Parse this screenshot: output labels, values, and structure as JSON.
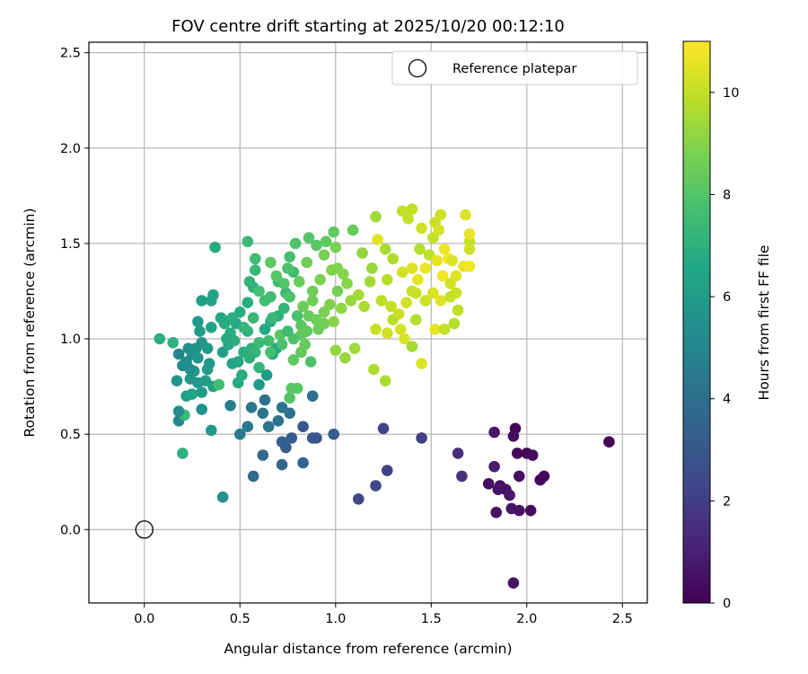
{
  "chart_data": {
    "type": "scatter",
    "title": "FOV centre drift starting at 2025/10/20 00:12:10",
    "xlabel": "Angular distance from reference (arcmin)",
    "ylabel": "Rotation from reference (arcmin)",
    "xlim": [
      -0.29,
      2.63
    ],
    "ylim": [
      -0.385,
      2.555
    ],
    "x_ticks": [
      "0.0",
      "0.5",
      "1.0",
      "1.5",
      "2.0",
      "2.5"
    ],
    "x_tick_values": [
      0,
      0.5,
      1.0,
      1.5,
      2.0,
      2.5
    ],
    "y_ticks": [
      "0.0",
      "0.5",
      "1.0",
      "1.5",
      "2.0",
      "2.5"
    ],
    "y_tick_values": [
      0,
      0.5,
      1.0,
      1.5,
      2.0,
      2.5
    ],
    "grid": true,
    "legend": {
      "placement": "top-right",
      "entries": [
        "Reference platepar"
      ]
    },
    "reference_point": {
      "x": 0.0,
      "y": 0.0,
      "marker": "open-circle"
    },
    "colorbar": {
      "label": "Hours from first FF file",
      "colormap": "viridis",
      "range": [
        0,
        11
      ],
      "ticks": [
        "0",
        "2",
        "4",
        "6",
        "8",
        "10"
      ],
      "tick_values": [
        0,
        2,
        4,
        6,
        8,
        10
      ]
    },
    "points": [
      [
        2.43,
        0.46,
        0.1
      ],
      [
        1.94,
        0.53,
        0.1
      ],
      [
        1.95,
        0.4,
        0.2
      ],
      [
        2.0,
        0.4,
        0.2
      ],
      [
        2.03,
        0.39,
        0.3
      ],
      [
        1.93,
        0.49,
        0.4
      ],
      [
        2.09,
        0.28,
        0.3
      ],
      [
        2.07,
        0.26,
        0.2
      ],
      [
        1.96,
        0.28,
        0.4
      ],
      [
        1.8,
        0.24,
        0.4
      ],
      [
        1.86,
        0.23,
        0.5
      ],
      [
        1.85,
        0.21,
        0.6
      ],
      [
        1.89,
        0.21,
        0.5
      ],
      [
        1.91,
        0.18,
        0.7
      ],
      [
        1.92,
        0.11,
        0.6
      ],
      [
        1.96,
        0.1,
        0.5
      ],
      [
        2.02,
        0.1,
        0.3
      ],
      [
        1.84,
        0.09,
        0.4
      ],
      [
        1.93,
        -0.28,
        0.6
      ],
      [
        1.83,
        0.51,
        0.7
      ],
      [
        1.83,
        0.33,
        0.9
      ],
      [
        1.64,
        0.4,
        1.4
      ],
      [
        1.66,
        0.28,
        1.5
      ],
      [
        1.45,
        0.48,
        2.0
      ],
      [
        1.25,
        0.53,
        2.2
      ],
      [
        1.27,
        0.31,
        2.1
      ],
      [
        1.21,
        0.23,
        2.4
      ],
      [
        1.12,
        0.16,
        2.3
      ],
      [
        0.83,
        0.54,
        3.0
      ],
      [
        0.99,
        0.5,
        3.3
      ],
      [
        0.88,
        0.48,
        3.1
      ],
      [
        0.9,
        0.48,
        3.0
      ],
      [
        0.77,
        0.48,
        3.2
      ],
      [
        0.72,
        0.46,
        3.4
      ],
      [
        0.74,
        0.43,
        3.2
      ],
      [
        0.83,
        0.35,
        3.5
      ],
      [
        0.72,
        0.34,
        3.6
      ],
      [
        0.57,
        0.28,
        3.8
      ],
      [
        0.62,
        0.39,
        3.7
      ],
      [
        0.76,
        0.61,
        4.0
      ],
      [
        0.62,
        0.61,
        4.3
      ],
      [
        0.63,
        0.68,
        4.1
      ],
      [
        0.56,
        0.64,
        4.4
      ],
      [
        0.72,
        0.64,
        4.2
      ],
      [
        0.5,
        0.5,
        4.6
      ],
      [
        0.54,
        0.54,
        4.5
      ],
      [
        0.65,
        0.54,
        4.3
      ],
      [
        0.88,
        0.7,
        4.0
      ],
      [
        0.7,
        0.57,
        4.2
      ],
      [
        0.45,
        0.65,
        4.7
      ],
      [
        0.41,
        0.17,
        5.6
      ],
      [
        0.2,
        0.4,
        7.0
      ],
      [
        0.18,
        0.57,
        5.0
      ],
      [
        0.21,
        0.6,
        7.3
      ],
      [
        0.18,
        0.62,
        5.3
      ],
      [
        0.3,
        0.63,
        5.5
      ],
      [
        0.22,
        0.7,
        6.2
      ],
      [
        0.25,
        0.71,
        6.4
      ],
      [
        0.17,
        0.78,
        5.6
      ],
      [
        0.24,
        0.79,
        5.8
      ],
      [
        0.2,
        0.86,
        5.2
      ],
      [
        0.22,
        0.88,
        5.5
      ],
      [
        0.18,
        0.92,
        5.0
      ],
      [
        0.25,
        0.92,
        5.3
      ],
      [
        0.27,
        0.95,
        5.5
      ],
      [
        0.3,
        0.98,
        5.7
      ],
      [
        0.33,
        0.95,
        5.9
      ],
      [
        0.29,
        1.04,
        6.1
      ],
      [
        0.35,
        1.06,
        6.3
      ],
      [
        0.28,
        1.09,
        6.0
      ],
      [
        0.35,
        1.2,
        6.3
      ],
      [
        0.3,
        1.2,
        6.2
      ],
      [
        0.36,
        1.23,
        6.3
      ],
      [
        0.37,
        1.48,
        6.7
      ],
      [
        0.08,
        1.0,
        6.9
      ],
      [
        0.15,
        0.98,
        7.0
      ],
      [
        0.35,
        0.52,
        5.9
      ],
      [
        0.36,
        0.75,
        6.2
      ],
      [
        0.39,
        0.76,
        7.6
      ],
      [
        0.34,
        0.87,
        6.0
      ],
      [
        0.41,
        0.93,
        6.2
      ],
      [
        0.41,
        1.1,
        6.2
      ],
      [
        0.46,
        0.87,
        6.4
      ],
      [
        0.49,
        0.88,
        6.5
      ],
      [
        0.44,
        0.97,
        6.6
      ],
      [
        0.48,
        1.08,
        6.5
      ],
      [
        0.5,
        1.14,
        6.7
      ],
      [
        0.54,
        1.19,
        6.9
      ],
      [
        0.57,
        1.27,
        7.0
      ],
      [
        0.55,
        1.3,
        7.2
      ],
      [
        0.58,
        1.36,
        7.3
      ],
      [
        0.54,
        1.51,
        7.4
      ],
      [
        0.58,
        1.42,
        7.5
      ],
      [
        0.49,
        0.77,
        6.7
      ],
      [
        0.51,
        0.81,
        6.8
      ],
      [
        0.52,
        0.93,
        6.9
      ],
      [
        0.56,
        0.95,
        7.0
      ],
      [
        0.6,
        0.85,
        7.2
      ],
      [
        0.6,
        0.76,
        5.9
      ],
      [
        0.64,
        0.81,
        6.0
      ],
      [
        0.67,
        0.92,
        6.2
      ],
      [
        0.69,
        0.95,
        6.4
      ],
      [
        0.63,
        1.05,
        6.6
      ],
      [
        0.66,
        1.09,
        6.8
      ],
      [
        0.7,
        1.12,
        7.0
      ],
      [
        0.73,
        1.16,
        7.2
      ],
      [
        0.74,
        1.24,
        7.4
      ],
      [
        0.7,
        1.3,
        7.5
      ],
      [
        0.78,
        1.35,
        7.6
      ],
      [
        0.76,
        1.43,
        7.7
      ],
      [
        0.75,
        1.37,
        7.8
      ],
      [
        0.79,
        1.5,
        7.9
      ],
      [
        0.86,
        1.53,
        8.0
      ],
      [
        0.9,
        1.49,
        8.1
      ],
      [
        0.95,
        1.51,
        8.2
      ],
      [
        0.99,
        1.56,
        8.3
      ],
      [
        1.09,
        1.57,
        8.4
      ],
      [
        0.81,
        1.3,
        8.4
      ],
      [
        0.88,
        1.25,
        8.5
      ],
      [
        0.85,
        1.4,
        8.6
      ],
      [
        0.94,
        1.44,
        8.7
      ],
      [
        0.92,
        1.31,
        8.8
      ],
      [
        0.98,
        1.36,
        8.9
      ],
      [
        1.01,
        1.37,
        8.9
      ],
      [
        1.0,
        1.48,
        8.8
      ],
      [
        1.04,
        1.34,
        9.0
      ],
      [
        1.06,
        1.29,
        9.0
      ],
      [
        0.76,
        0.69,
        8.0
      ],
      [
        0.77,
        0.74,
        8.1
      ],
      [
        0.8,
        0.74,
        8.1
      ],
      [
        0.78,
        0.89,
        8.2
      ],
      [
        0.82,
        0.93,
        8.3
      ],
      [
        0.84,
        0.97,
        8.4
      ],
      [
        0.87,
        0.88,
        7.9
      ],
      [
        0.86,
        1.12,
        8.4
      ],
      [
        0.9,
        1.1,
        8.6
      ],
      [
        0.94,
        1.14,
        8.8
      ],
      [
        0.97,
        1.18,
        8.9
      ],
      [
        0.99,
        1.09,
        9.0
      ],
      [
        1.03,
        1.16,
        9.1
      ],
      [
        1.01,
        1.25,
        8.7
      ],
      [
        1.0,
        0.94,
        9.2
      ],
      [
        1.05,
        0.9,
        9.3
      ],
      [
        1.1,
        0.95,
        9.4
      ],
      [
        1.12,
        1.23,
        9.5
      ],
      [
        1.08,
        1.2,
        9.3
      ],
      [
        1.15,
        1.17,
        9.6
      ],
      [
        1.18,
        1.3,
        9.5
      ],
      [
        1.14,
        1.45,
        9.2
      ],
      [
        1.19,
        1.37,
        9.3
      ],
      [
        1.21,
        1.64,
        9.4
      ],
      [
        1.22,
        1.52,
        10.5
      ],
      [
        1.26,
        1.47,
        9.6
      ],
      [
        1.3,
        1.42,
        9.7
      ],
      [
        1.27,
        1.31,
        9.8
      ],
      [
        1.24,
        1.2,
        9.9
      ],
      [
        1.29,
        1.17,
        10.0
      ],
      [
        1.3,
        1.1,
        9.8
      ],
      [
        1.21,
        1.05,
        10.1
      ],
      [
        1.27,
        1.03,
        10.2
      ],
      [
        1.34,
        1.05,
        10.3
      ],
      [
        1.36,
        1.0,
        10.4
      ],
      [
        1.33,
        1.13,
        10.1
      ],
      [
        1.37,
        1.19,
        10.2
      ],
      [
        1.4,
        1.25,
        10.0
      ],
      [
        1.35,
        1.35,
        10.3
      ],
      [
        1.4,
        1.37,
        10.5
      ],
      [
        1.43,
        1.31,
        10.6
      ],
      [
        1.47,
        1.37,
        10.7
      ],
      [
        1.44,
        1.47,
        9.8
      ],
      [
        1.49,
        1.44,
        9.9
      ],
      [
        1.51,
        1.53,
        10.0
      ],
      [
        1.52,
        1.61,
        10.1
      ],
      [
        1.55,
        1.65,
        10.2
      ],
      [
        1.53,
        1.41,
        10.6
      ],
      [
        1.56,
        1.33,
        10.8
      ],
      [
        1.57,
        1.47,
        10.7
      ],
      [
        1.59,
        1.42,
        10.9
      ],
      [
        1.51,
        1.24,
        10.4
      ],
      [
        1.55,
        1.2,
        10.5
      ],
      [
        1.52,
        1.05,
        10.6
      ],
      [
        1.45,
        0.87,
        10.4
      ],
      [
        1.4,
        0.96,
        9.5
      ],
      [
        1.26,
        0.78,
        9.6
      ],
      [
        1.2,
        0.84,
        9.7
      ],
      [
        1.42,
        1.1,
        9.8
      ],
      [
        1.4,
        1.68,
        9.9
      ],
      [
        1.38,
        1.63,
        10.0
      ],
      [
        1.35,
        1.67,
        10.0
      ],
      [
        1.45,
        1.58,
        10.2
      ],
      [
        1.54,
        1.57,
        10.3
      ],
      [
        1.61,
        1.41,
        10.4
      ],
      [
        1.63,
        1.33,
        10.5
      ],
      [
        1.6,
        1.29,
        10.3
      ],
      [
        1.63,
        1.24,
        10.1
      ],
      [
        1.6,
        1.22,
        10.0
      ],
      [
        1.64,
        1.15,
        9.9
      ],
      [
        1.62,
        1.08,
        9.8
      ],
      [
        1.57,
        1.05,
        10.0
      ],
      [
        1.67,
        1.38,
        10.6
      ],
      [
        1.7,
        1.51,
        10.0
      ],
      [
        1.7,
        1.47,
        10.2
      ],
      [
        1.68,
        1.65,
        10.4
      ],
      [
        1.7,
        1.55,
        10.6
      ],
      [
        1.7,
        1.38,
        10.8
      ],
      [
        1.42,
        1.24,
        10.1
      ],
      [
        1.47,
        1.2,
        10.2
      ],
      [
        0.82,
        1.02,
        8.3
      ],
      [
        0.71,
        1.02,
        8.1
      ],
      [
        0.65,
        0.99,
        7.6
      ],
      [
        0.6,
        0.98,
        7.4
      ],
      [
        0.58,
        0.93,
        7.2
      ],
      [
        0.55,
        0.9,
        7.0
      ],
      [
        0.66,
        0.93,
        7.7
      ],
      [
        0.72,
        0.97,
        7.8
      ],
      [
        0.78,
        1.0,
        7.9
      ],
      [
        0.66,
        1.22,
        7.5
      ],
      [
        0.63,
        1.2,
        7.6
      ],
      [
        0.6,
        1.25,
        7.7
      ],
      [
        0.57,
        1.11,
        7.3
      ],
      [
        0.54,
        1.04,
        7.1
      ],
      [
        0.52,
        1.06,
        7.2
      ],
      [
        0.47,
        0.99,
        7.0
      ],
      [
        0.45,
        1.03,
        6.9
      ],
      [
        0.42,
        1.08,
        6.8
      ],
      [
        0.4,
        1.11,
        6.6
      ],
      [
        0.43,
        1.0,
        6.7
      ],
      [
        0.46,
        1.11,
        6.9
      ],
      [
        0.67,
        1.11,
        7.3
      ],
      [
        0.75,
        1.04,
        7.5
      ],
      [
        0.8,
        1.12,
        7.8
      ],
      [
        0.76,
        1.22,
        7.9
      ],
      [
        0.73,
        1.29,
        8.0
      ],
      [
        0.69,
        1.33,
        8.1
      ],
      [
        0.66,
        1.4,
        8.2
      ],
      [
        0.82,
        1.07,
        8.2
      ],
      [
        0.85,
        1.04,
        8.3
      ],
      [
        0.91,
        1.05,
        8.5
      ],
      [
        0.94,
        1.08,
        8.6
      ],
      [
        0.88,
        1.2,
        8.6
      ],
      [
        0.83,
        1.17,
        8.5
      ],
      [
        0.28,
        0.77,
        5.8
      ],
      [
        0.3,
        0.72,
        6.0
      ],
      [
        0.32,
        0.78,
        6.1
      ],
      [
        0.26,
        0.83,
        5.9
      ],
      [
        0.33,
        0.84,
        6.0
      ],
      [
        0.28,
        0.9,
        5.7
      ],
      [
        0.23,
        0.95,
        5.6
      ],
      [
        0.24,
        0.84,
        5.4
      ]
    ]
  }
}
